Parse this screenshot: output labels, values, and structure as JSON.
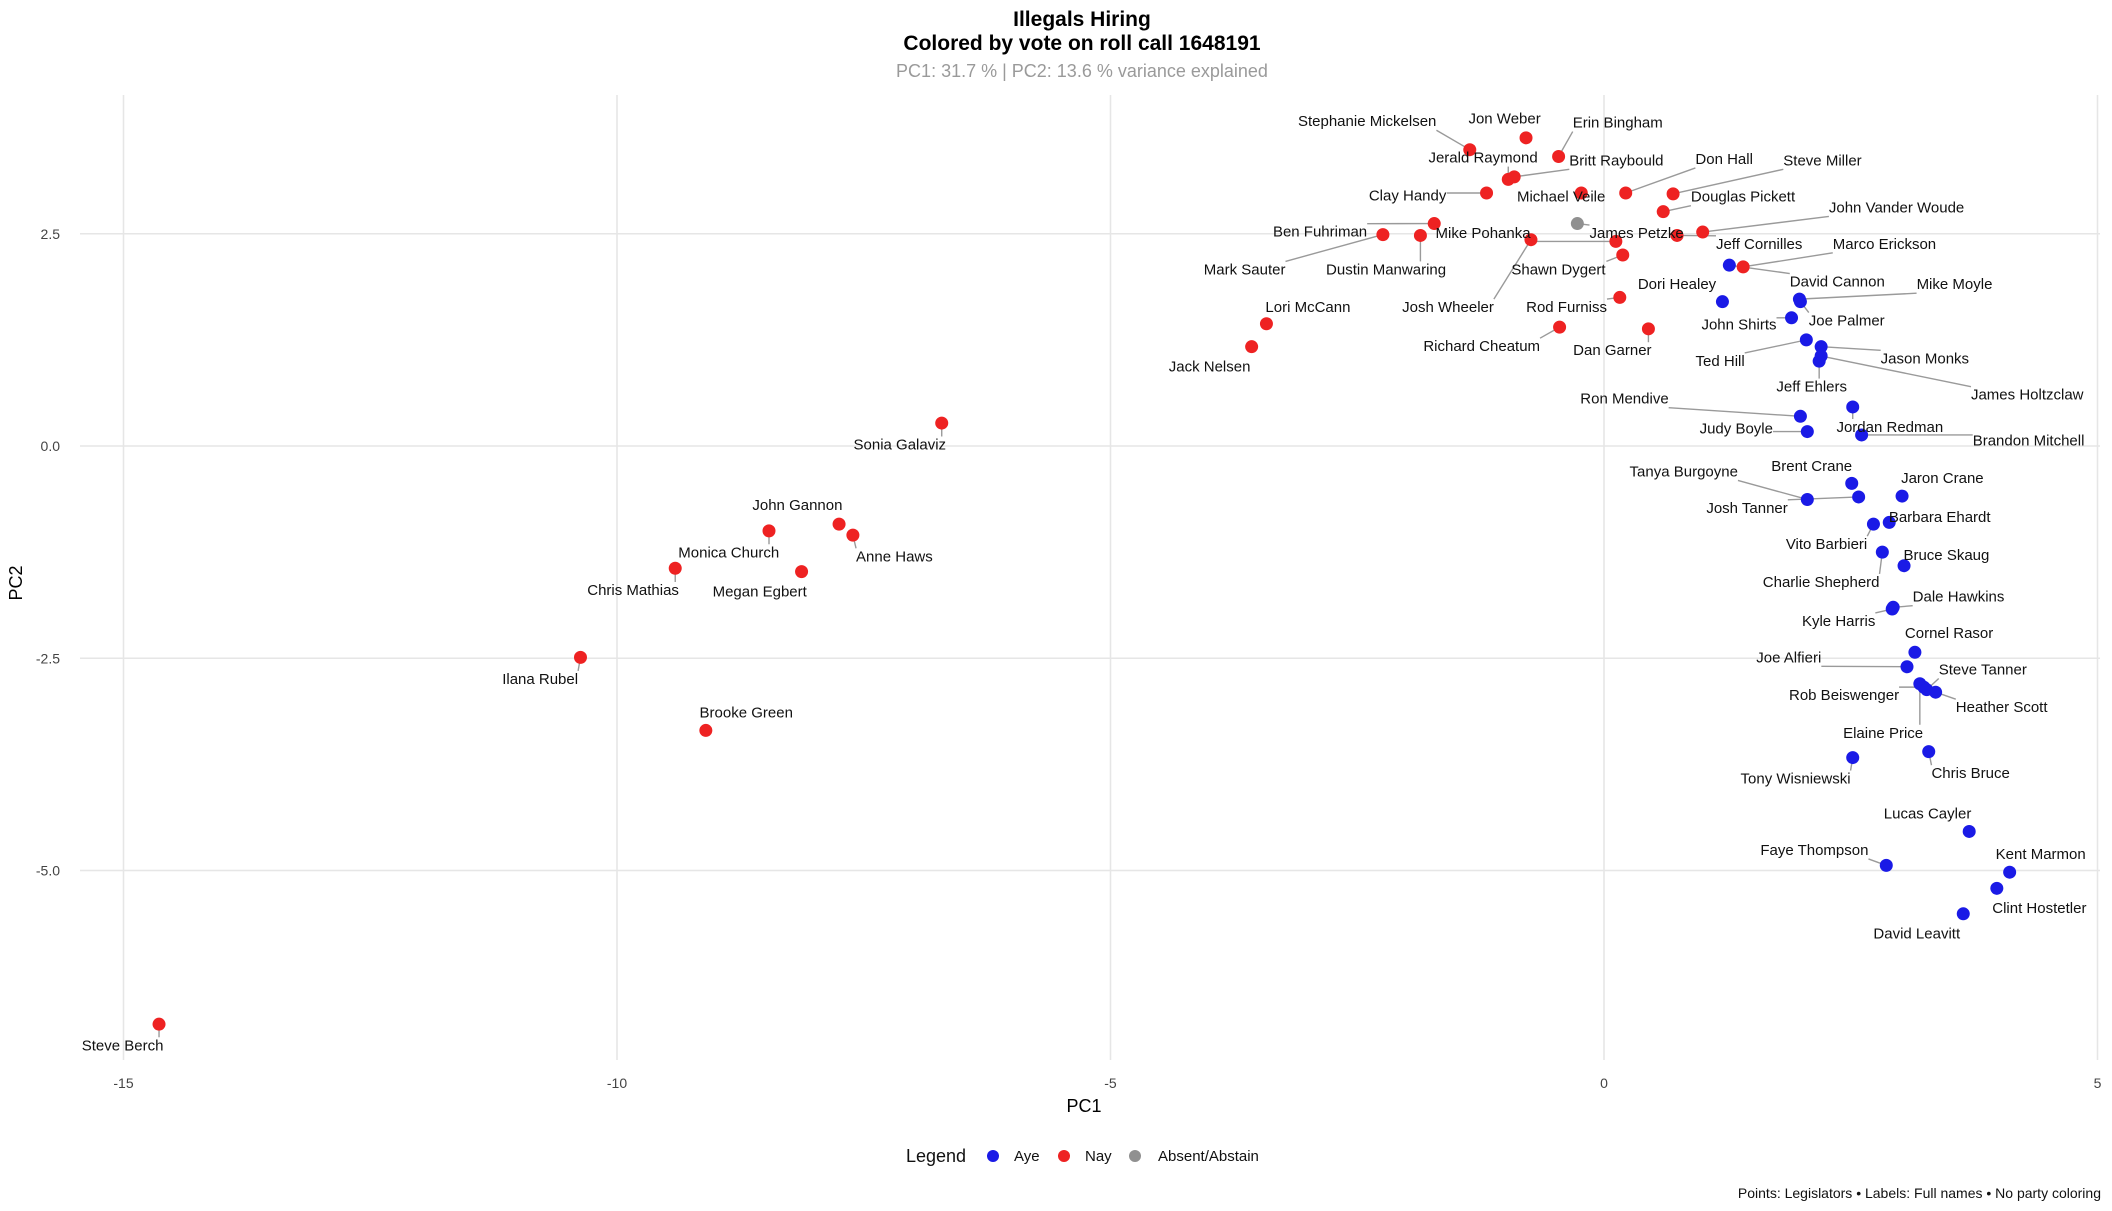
{
  "chart_data": {
    "type": "scatter",
    "title": "Illegals Hiring",
    "subtitle_line": "Colored by vote on roll call 1648191",
    "variance_note": "PC1: 31.7 % | PC2: 13.6 % variance explained",
    "xlabel": "PC1",
    "ylabel": "PC2",
    "xlim": [
      -15.8,
      5
    ],
    "ylim": [
      -7.1,
      3.95
    ],
    "x_ticks": [
      -15,
      -10,
      -5,
      0,
      5
    ],
    "x_tick_labels": [
      "-15",
      "-10",
      "-5",
      "0",
      "5"
    ],
    "y_ticks": [
      -5,
      -2.5,
      0,
      2.5
    ],
    "y_tick_labels": [
      "-5.0",
      "-2.5",
      "0.0",
      "2.5"
    ],
    "grid": true,
    "legend": {
      "title": "Legend",
      "placement": "bottom",
      "entries": [
        {
          "key": "Aye",
          "label": "Aye",
          "color": "#1a1ae6"
        },
        {
          "key": "Nay",
          "label": "Nay",
          "color": "#ee2222"
        },
        {
          "key": "Absent",
          "label": "Absent/Abstain",
          "color": "#909090"
        }
      ]
    },
    "caption": "Points: Legislators • Labels: Full names • No party coloring",
    "points": [
      {
        "name": "Stephanie Mickelsen",
        "x": -1.36,
        "y": 3.49,
        "vote": "Nay"
      },
      {
        "name": "Jon Weber",
        "x": -0.79,
        "y": 3.63,
        "vote": "Nay"
      },
      {
        "name": "Erin Bingham",
        "x": -0.46,
        "y": 3.41,
        "vote": "Nay"
      },
      {
        "name": "Britt Raybould",
        "x": -0.91,
        "y": 3.17,
        "vote": "Nay"
      },
      {
        "name": "Jerald Raymond",
        "x": -0.97,
        "y": 3.14,
        "vote": "Nay"
      },
      {
        "name": "Clay Handy",
        "x": -1.19,
        "y": 2.98,
        "vote": "Nay"
      },
      {
        "name": "Michael Veile",
        "x": -0.23,
        "y": 2.98,
        "vote": "Nay"
      },
      {
        "name": "Don Hall",
        "x": 0.22,
        "y": 2.98,
        "vote": "Nay"
      },
      {
        "name": "Steve Miller",
        "x": 0.7,
        "y": 2.97,
        "vote": "Nay"
      },
      {
        "name": "Douglas Pickett",
        "x": 0.6,
        "y": 2.76,
        "vote": "Nay"
      },
      {
        "name": "James Petzke",
        "x": -0.27,
        "y": 2.62,
        "vote": "Absent"
      },
      {
        "name": "Ben Fuhriman",
        "x": -1.72,
        "y": 2.62,
        "vote": "Nay"
      },
      {
        "name": "Mark Sauter",
        "x": -2.24,
        "y": 2.49,
        "vote": "Nay"
      },
      {
        "name": "Dustin Manwaring",
        "x": -1.86,
        "y": 2.48,
        "vote": "Nay"
      },
      {
        "name": "Josh Wheeler",
        "x": -0.74,
        "y": 2.43,
        "vote": "Nay"
      },
      {
        "name": "Mike Pohanka",
        "x": 0.12,
        "y": 2.41,
        "vote": "Nay"
      },
      {
        "name": "Shawn Dygert",
        "x": 0.19,
        "y": 2.25,
        "vote": "Nay"
      },
      {
        "name": "Jeff Cornilles",
        "x": 0.74,
        "y": 2.48,
        "vote": "Nay"
      },
      {
        "name": "John Vander Woude",
        "x": 1.0,
        "y": 2.52,
        "vote": "Nay"
      },
      {
        "name": "David Cannon",
        "x": 1.27,
        "y": 2.13,
        "vote": "Aye"
      },
      {
        "name": "Marco Erickson",
        "x": 1.41,
        "y": 2.11,
        "vote": "Nay"
      },
      {
        "name": "Rod Furniss",
        "x": 0.16,
        "y": 1.75,
        "vote": "Nay"
      },
      {
        "name": "Dori Healey",
        "x": 1.2,
        "y": 1.7,
        "vote": "Aye"
      },
      {
        "name": "Richard Cheatum",
        "x": -0.45,
        "y": 1.4,
        "vote": "Nay"
      },
      {
        "name": "Dan Garner",
        "x": 0.45,
        "y": 1.38,
        "vote": "Nay"
      },
      {
        "name": "Lori McCann",
        "x": -3.42,
        "y": 1.44,
        "vote": "Nay"
      },
      {
        "name": "Jack Nelsen",
        "x": -3.57,
        "y": 1.17,
        "vote": "Nay"
      },
      {
        "name": "Mike Moyle",
        "x": 1.98,
        "y": 1.73,
        "vote": "Aye"
      },
      {
        "name": "Joe Palmer",
        "x": 1.99,
        "y": 1.7,
        "vote": "Aye"
      },
      {
        "name": "John Shirts",
        "x": 1.9,
        "y": 1.51,
        "vote": "Aye"
      },
      {
        "name": "Ted Hill",
        "x": 2.05,
        "y": 1.25,
        "vote": "Aye"
      },
      {
        "name": "Jason Monks",
        "x": 2.2,
        "y": 1.17,
        "vote": "Aye"
      },
      {
        "name": "James Holtzclaw",
        "x": 2.2,
        "y": 1.06,
        "vote": "Aye"
      },
      {
        "name": "Jeff Ehlers",
        "x": 2.18,
        "y": 1.0,
        "vote": "Aye"
      },
      {
        "name": "Ron Mendive",
        "x": 1.99,
        "y": 0.35,
        "vote": "Aye"
      },
      {
        "name": "Judy Boyle",
        "x": 2.06,
        "y": 0.17,
        "vote": "Aye"
      },
      {
        "name": "Jordan Redman",
        "x": 2.52,
        "y": 0.46,
        "vote": "Aye"
      },
      {
        "name": "Brandon Mitchell",
        "x": 2.61,
        "y": 0.13,
        "vote": "Aye"
      },
      {
        "name": "Brent Crane",
        "x": 2.51,
        "y": -0.44,
        "vote": "Aye"
      },
      {
        "name": "Tanya Burgoyne",
        "x": 2.06,
        "y": -0.63,
        "vote": "Aye"
      },
      {
        "name": "Josh Tanner",
        "x": 2.58,
        "y": -0.6,
        "vote": "Aye"
      },
      {
        "name": "Jaron Crane",
        "x": 3.02,
        "y": -0.59,
        "vote": "Aye"
      },
      {
        "name": "Vito Barbieri",
        "x": 2.73,
        "y": -0.92,
        "vote": "Aye"
      },
      {
        "name": "Barbara Ehardt",
        "x": 2.89,
        "y": -0.9,
        "vote": "Aye"
      },
      {
        "name": "Charlie Shepherd",
        "x": 2.82,
        "y": -1.25,
        "vote": "Aye"
      },
      {
        "name": "Bruce Skaug",
        "x": 3.04,
        "y": -1.41,
        "vote": "Aye"
      },
      {
        "name": "Dale Hawkins",
        "x": 2.93,
        "y": -1.9,
        "vote": "Aye"
      },
      {
        "name": "Kyle Harris",
        "x": 2.92,
        "y": -1.92,
        "vote": "Aye"
      },
      {
        "name": "Cornel Rasor",
        "x": 3.15,
        "y": -2.43,
        "vote": "Aye"
      },
      {
        "name": "Joe Alfieri",
        "x": 3.07,
        "y": -2.6,
        "vote": "Aye"
      },
      {
        "name": "Elaine Price",
        "x": 3.2,
        "y": -2.8,
        "vote": "Aye"
      },
      {
        "name": "Rob Beiswenger",
        "x": 3.24,
        "y": -2.84,
        "vote": "Aye"
      },
      {
        "name": "Steve Tanner",
        "x": 3.27,
        "y": -2.87,
        "vote": "Aye"
      },
      {
        "name": "Heather Scott",
        "x": 3.36,
        "y": -2.9,
        "vote": "Aye"
      },
      {
        "name": "Chris Bruce",
        "x": 3.29,
        "y": -3.6,
        "vote": "Aye"
      },
      {
        "name": "Tony Wisniewski",
        "x": 2.52,
        "y": -3.67,
        "vote": "Aye"
      },
      {
        "name": "Lucas Cayler",
        "x": 3.7,
        "y": -4.54,
        "vote": "Aye"
      },
      {
        "name": "Faye Thompson",
        "x": 2.86,
        "y": -4.94,
        "vote": "Aye"
      },
      {
        "name": "Kent Marmon",
        "x": 4.11,
        "y": -5.02,
        "vote": "Aye"
      },
      {
        "name": "Clint Hostetler",
        "x": 3.98,
        "y": -5.21,
        "vote": "Aye"
      },
      {
        "name": "David Leavitt",
        "x": 3.64,
        "y": -5.51,
        "vote": "Aye"
      },
      {
        "name": "Sonia Galaviz",
        "x": -6.71,
        "y": 0.27,
        "vote": "Nay"
      },
      {
        "name": "John Gannon",
        "x": -7.75,
        "y": -0.92,
        "vote": "Nay"
      },
      {
        "name": "Anne Haws",
        "x": -7.61,
        "y": -1.05,
        "vote": "Nay"
      },
      {
        "name": "Monica Church",
        "x": -8.46,
        "y": -1.0,
        "vote": "Nay"
      },
      {
        "name": "Chris Mathias",
        "x": -9.41,
        "y": -1.44,
        "vote": "Nay"
      },
      {
        "name": "Megan Egbert",
        "x": -8.13,
        "y": -1.48,
        "vote": "Nay"
      },
      {
        "name": "Ilana Rubel",
        "x": -10.37,
        "y": -2.49,
        "vote": "Nay"
      },
      {
        "name": "Brooke Green",
        "x": -9.1,
        "y": -3.35,
        "vote": "Nay"
      },
      {
        "name": "Steve Berch",
        "x": -14.64,
        "y": -6.81,
        "vote": "Nay"
      }
    ]
  }
}
